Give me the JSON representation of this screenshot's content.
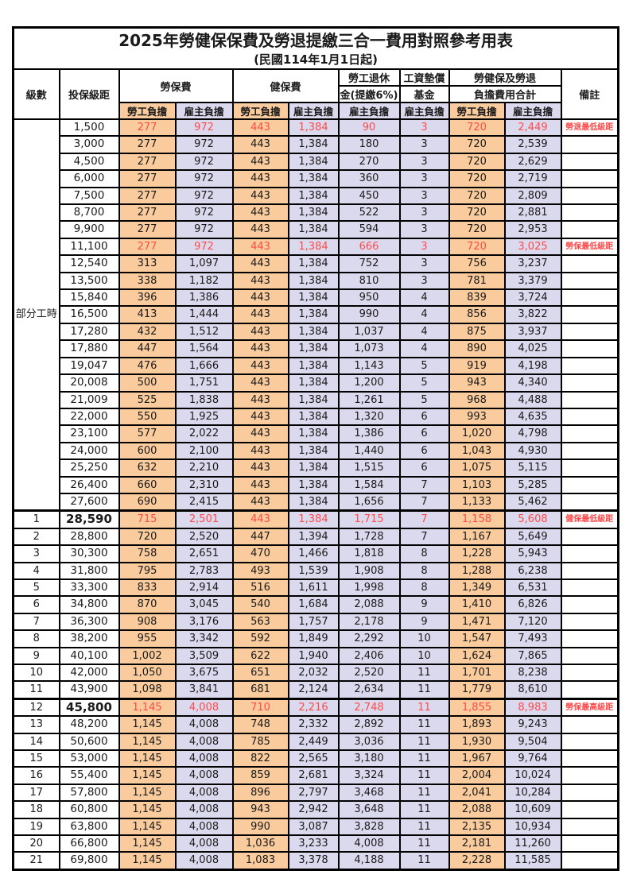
{
  "title": "2025年勞健保保費及勞退提繳三合一費用對照參考用表",
  "subtitle": "(民國114年1月1日起)",
  "colors": {
    "employee_bg": "#F9CB9D",
    "employer_bg": "#DBD9EE",
    "red_text": "#FF4A4A",
    "border": "#000000"
  },
  "table": {
    "headers": {
      "level": "級數",
      "bracket": "投保級距",
      "labor_insurance": "勞保費",
      "health_insurance": "健保費",
      "pension_line1": "勞工退休",
      "pension_line2": "金(提繳6%)",
      "wage_fund_line1": "工資墊償",
      "wage_fund_line2": "基金",
      "total_line1": "勞健保及勞退",
      "total_line2": "負擔費用合計",
      "remark": "備註",
      "employee_share": "勞工負擔",
      "employer_share": "雇主負擔"
    },
    "group_label": "部分工時",
    "row_fields": [
      "level",
      "bracket",
      "labor_employee",
      "labor_employer",
      "health_employee",
      "health_employer",
      "pension_employer",
      "wage_fund_employer",
      "total_employee",
      "total_employer",
      "remark",
      "is_red_row",
      "is_bold_bracket"
    ],
    "rows": [
      [
        "",
        "1,500",
        "277",
        "972",
        "443",
        "1,384",
        "90",
        "3",
        "720",
        "2,449",
        "勞退最低級距",
        1,
        0
      ],
      [
        "",
        "3,000",
        "277",
        "972",
        "443",
        "1,384",
        "180",
        "3",
        "720",
        "2,539",
        "",
        0,
        0
      ],
      [
        "",
        "4,500",
        "277",
        "972",
        "443",
        "1,384",
        "270",
        "3",
        "720",
        "2,629",
        "",
        0,
        0
      ],
      [
        "",
        "6,000",
        "277",
        "972",
        "443",
        "1,384",
        "360",
        "3",
        "720",
        "2,719",
        "",
        0,
        0
      ],
      [
        "",
        "7,500",
        "277",
        "972",
        "443",
        "1,384",
        "450",
        "3",
        "720",
        "2,809",
        "",
        0,
        0
      ],
      [
        "",
        "8,700",
        "277",
        "972",
        "443",
        "1,384",
        "522",
        "3",
        "720",
        "2,881",
        "",
        0,
        0
      ],
      [
        "",
        "9,900",
        "277",
        "972",
        "443",
        "1,384",
        "594",
        "3",
        "720",
        "2,953",
        "",
        0,
        0
      ],
      [
        "",
        "11,100",
        "277",
        "972",
        "443",
        "1,384",
        "666",
        "3",
        "720",
        "3,025",
        "勞保最低級距",
        1,
        0
      ],
      [
        "",
        "12,540",
        "313",
        "1,097",
        "443",
        "1,384",
        "752",
        "3",
        "756",
        "3,237",
        "",
        0,
        0
      ],
      [
        "",
        "13,500",
        "338",
        "1,182",
        "443",
        "1,384",
        "810",
        "3",
        "781",
        "3,379",
        "",
        0,
        0
      ],
      [
        "",
        "15,840",
        "396",
        "1,386",
        "443",
        "1,384",
        "950",
        "4",
        "839",
        "3,724",
        "",
        0,
        0
      ],
      [
        "",
        "16,500",
        "413",
        "1,444",
        "443",
        "1,384",
        "990",
        "4",
        "856",
        "3,822",
        "",
        0,
        0
      ],
      [
        "",
        "17,280",
        "432",
        "1,512",
        "443",
        "1,384",
        "1,037",
        "4",
        "875",
        "3,937",
        "",
        0,
        0
      ],
      [
        "",
        "17,880",
        "447",
        "1,564",
        "443",
        "1,384",
        "1,073",
        "4",
        "890",
        "4,025",
        "",
        0,
        0
      ],
      [
        "",
        "19,047",
        "476",
        "1,666",
        "443",
        "1,384",
        "1,143",
        "5",
        "919",
        "4,198",
        "",
        0,
        0
      ],
      [
        "",
        "20,008",
        "500",
        "1,751",
        "443",
        "1,384",
        "1,200",
        "5",
        "943",
        "4,340",
        "",
        0,
        0
      ],
      [
        "",
        "21,009",
        "525",
        "1,838",
        "443",
        "1,384",
        "1,261",
        "5",
        "968",
        "4,488",
        "",
        0,
        0
      ],
      [
        "",
        "22,000",
        "550",
        "1,925",
        "443",
        "1,384",
        "1,320",
        "6",
        "993",
        "4,635",
        "",
        0,
        0
      ],
      [
        "",
        "23,100",
        "577",
        "2,022",
        "443",
        "1,384",
        "1,386",
        "6",
        "1,020",
        "4,798",
        "",
        0,
        0
      ],
      [
        "",
        "24,000",
        "600",
        "2,100",
        "443",
        "1,384",
        "1,440",
        "6",
        "1,043",
        "4,930",
        "",
        0,
        0
      ],
      [
        "",
        "25,250",
        "632",
        "2,210",
        "443",
        "1,384",
        "1,515",
        "6",
        "1,075",
        "5,115",
        "",
        0,
        0
      ],
      [
        "",
        "26,400",
        "660",
        "2,310",
        "443",
        "1,384",
        "1,584",
        "7",
        "1,103",
        "5,285",
        "",
        0,
        0
      ],
      [
        "",
        "27,600",
        "690",
        "2,415",
        "443",
        "1,384",
        "1,656",
        "7",
        "1,133",
        "5,462",
        "",
        0,
        0
      ],
      [
        "1",
        "28,590",
        "715",
        "2,501",
        "443",
        "1,384",
        "1,715",
        "7",
        "1,158",
        "5,608",
        "健保最低級距",
        1,
        1
      ],
      [
        "2",
        "28,800",
        "720",
        "2,520",
        "447",
        "1,394",
        "1,728",
        "7",
        "1,167",
        "5,649",
        "",
        0,
        0
      ],
      [
        "3",
        "30,300",
        "758",
        "2,651",
        "470",
        "1,466",
        "1,818",
        "8",
        "1,228",
        "5,943",
        "",
        0,
        0
      ],
      [
        "4",
        "31,800",
        "795",
        "2,783",
        "493",
        "1,539",
        "1,908",
        "8",
        "1,288",
        "6,238",
        "",
        0,
        0
      ],
      [
        "5",
        "33,300",
        "833",
        "2,914",
        "516",
        "1,611",
        "1,998",
        "8",
        "1,349",
        "6,531",
        "",
        0,
        0
      ],
      [
        "6",
        "34,800",
        "870",
        "3,045",
        "540",
        "1,684",
        "2,088",
        "9",
        "1,410",
        "6,826",
        "",
        0,
        0
      ],
      [
        "7",
        "36,300",
        "908",
        "3,176",
        "563",
        "1,757",
        "2,178",
        "9",
        "1,471",
        "7,120",
        "",
        0,
        0
      ],
      [
        "8",
        "38,200",
        "955",
        "3,342",
        "592",
        "1,849",
        "2,292",
        "10",
        "1,547",
        "7,493",
        "",
        0,
        0
      ],
      [
        "9",
        "40,100",
        "1,002",
        "3,509",
        "622",
        "1,940",
        "2,406",
        "10",
        "1,624",
        "7,865",
        "",
        0,
        0
      ],
      [
        "10",
        "42,000",
        "1,050",
        "3,675",
        "651",
        "2,032",
        "2,520",
        "11",
        "1,701",
        "8,238",
        "",
        0,
        0
      ],
      [
        "11",
        "43,900",
        "1,098",
        "3,841",
        "681",
        "2,124",
        "2,634",
        "11",
        "1,779",
        "8,610",
        "",
        0,
        0
      ],
      [
        "12",
        "45,800",
        "1,145",
        "4,008",
        "710",
        "2,216",
        "2,748",
        "11",
        "1,855",
        "8,983",
        "勞保最高級距",
        1,
        1
      ],
      [
        "13",
        "48,200",
        "1,145",
        "4,008",
        "748",
        "2,332",
        "2,892",
        "11",
        "1,893",
        "9,243",
        "",
        0,
        0
      ],
      [
        "14",
        "50,600",
        "1,145",
        "4,008",
        "785",
        "2,449",
        "3,036",
        "11",
        "1,930",
        "9,504",
        "",
        0,
        0
      ],
      [
        "15",
        "53,000",
        "1,145",
        "4,008",
        "822",
        "2,565",
        "3,180",
        "11",
        "1,967",
        "9,764",
        "",
        0,
        0
      ],
      [
        "16",
        "55,400",
        "1,145",
        "4,008",
        "859",
        "2,681",
        "3,324",
        "11",
        "2,004",
        "10,024",
        "",
        0,
        0
      ],
      [
        "17",
        "57,800",
        "1,145",
        "4,008",
        "896",
        "2,797",
        "3,468",
        "11",
        "2,041",
        "10,284",
        "",
        0,
        0
      ],
      [
        "18",
        "60,800",
        "1,145",
        "4,008",
        "943",
        "2,942",
        "3,648",
        "11",
        "2,088",
        "10,609",
        "",
        0,
        0
      ],
      [
        "19",
        "63,800",
        "1,145",
        "4,008",
        "990",
        "3,087",
        "3,828",
        "11",
        "2,135",
        "10,934",
        "",
        0,
        0
      ],
      [
        "20",
        "66,800",
        "1,145",
        "4,008",
        "1,036",
        "3,233",
        "4,008",
        "11",
        "2,181",
        "11,260",
        "",
        0,
        0
      ],
      [
        "21",
        "69,800",
        "1,145",
        "4,008",
        "1,083",
        "3,378",
        "4,188",
        "11",
        "2,228",
        "11,585",
        "",
        0,
        0
      ]
    ]
  }
}
